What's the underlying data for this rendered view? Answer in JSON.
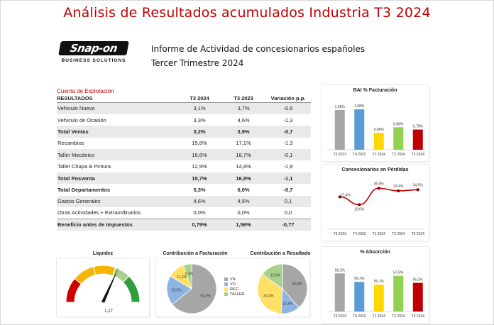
{
  "header": {
    "title": "Análisis de Resultados acumulados Industria T3 2024",
    "logo_text": "Snap-on",
    "logo_sub": "BUSINESS SOLUTIONS",
    "subtitle1": "Informe de Actividad de concesionarios españoles",
    "subtitle2": "Tercer Trimestre 2024"
  },
  "table": {
    "caption": "Cuenta de Explotación",
    "headers": [
      "RESULTADOS",
      "T3 2024",
      "T3 2023",
      "Variación p.p."
    ],
    "rows": [
      [
        "Vehículo Nuevo",
        "3,1%",
        "3,7%",
        "-0,6"
      ],
      [
        "Vehículo de Ocasión",
        "3,3%",
        "4,6%",
        "-1,3"
      ],
      [
        "Total Ventas",
        "3,2%",
        "3,9%",
        "-0,7"
      ],
      [
        "Recambios",
        "15,8%",
        "17,1%",
        "-1,3"
      ],
      [
        "Taller Mecánico",
        "16,6%",
        "16,7%",
        "-0,1"
      ],
      [
        "Taller Chapa & Pintura",
        "12,9%",
        "14,8%",
        "-1,9"
      ],
      [
        "Total Posventa",
        "15,7%",
        "16,8%",
        "-1,1"
      ],
      [
        "Total Departamentos",
        "5,3%",
        "6,0%",
        "-0,7"
      ],
      [
        "Gastos Generales",
        "4,6%",
        "4,5%",
        "0,1"
      ],
      [
        "Otras Actividades + Extraordinarios",
        "0,0%",
        "0,0%",
        "0,0"
      ],
      [
        "Beneficio antes de Impuestos",
        "0,79%",
        "1,56%",
        "-0,77"
      ]
    ]
  },
  "colors": {
    "accent": "#c00000",
    "grey": "#a6a6a6",
    "blue": "#5b9bd5",
    "yellow": "#ffd700",
    "green": "#92d050",
    "red": "#c00000"
  },
  "chart_data": [
    {
      "type": "bar",
      "title": "BAI % Facturación",
      "categories": [
        "T3 2023",
        "T4 2023",
        "T1 2024",
        "T2 2024",
        "T3 2024"
      ],
      "values": [
        1.56,
        1.58,
        0.66,
        0.88,
        0.79
      ],
      "labels": [
        "1,56%",
        "1,58%",
        "0,66%",
        "0,88%",
        "0,79%"
      ]
    },
    {
      "type": "line",
      "title": "Concesionarios en Pérdidas",
      "categories": [
        "T3 2023",
        "T4 2023",
        "T1 2024",
        "T2 2024",
        "T3 2024"
      ],
      "values": [
        27.4,
        19.6,
        36.0,
        33.4,
        34.5
      ],
      "labels": [
        "27,4%",
        "19,6%",
        "36,0%",
        "33,4%",
        "34,5%"
      ]
    },
    {
      "type": "bar",
      "title": "% Absorción",
      "categories": [
        "T3 2023",
        "T4 2023",
        "T1 2024",
        "T2 2024",
        "T3 2024"
      ],
      "values": [
        58.1,
        56.3,
        55.7,
        57.6,
        56.1
      ],
      "labels": [
        "58,1%",
        "56,3%",
        "55,7%",
        "57,6%",
        "56,1%"
      ]
    },
    {
      "type": "pie",
      "title": "Contribución a Facturación",
      "categories": [
        "VN",
        "VO",
        "REC.",
        "TALLER"
      ],
      "values": [
        64.2,
        19.3,
        11.2,
        5.3
      ],
      "labels": [
        "64,2%",
        "19,3%",
        "11,2%",
        "5,3%"
      ]
    },
    {
      "type": "pie",
      "title": "Contribución a Resultado",
      "categories": [
        "VN",
        "VO",
        "REC.",
        "TALLER"
      ],
      "values": [
        38.6,
        12.3,
        34.1,
        15.0
      ],
      "labels": [
        "38,6%",
        "12,3%",
        "34,1%",
        "15,0%"
      ]
    }
  ],
  "liquidez": {
    "title": "Liquidez",
    "value": 1.27,
    "value_label": "1,27"
  },
  "legend": [
    "VN",
    "VO",
    "REC.",
    "TALLER"
  ]
}
